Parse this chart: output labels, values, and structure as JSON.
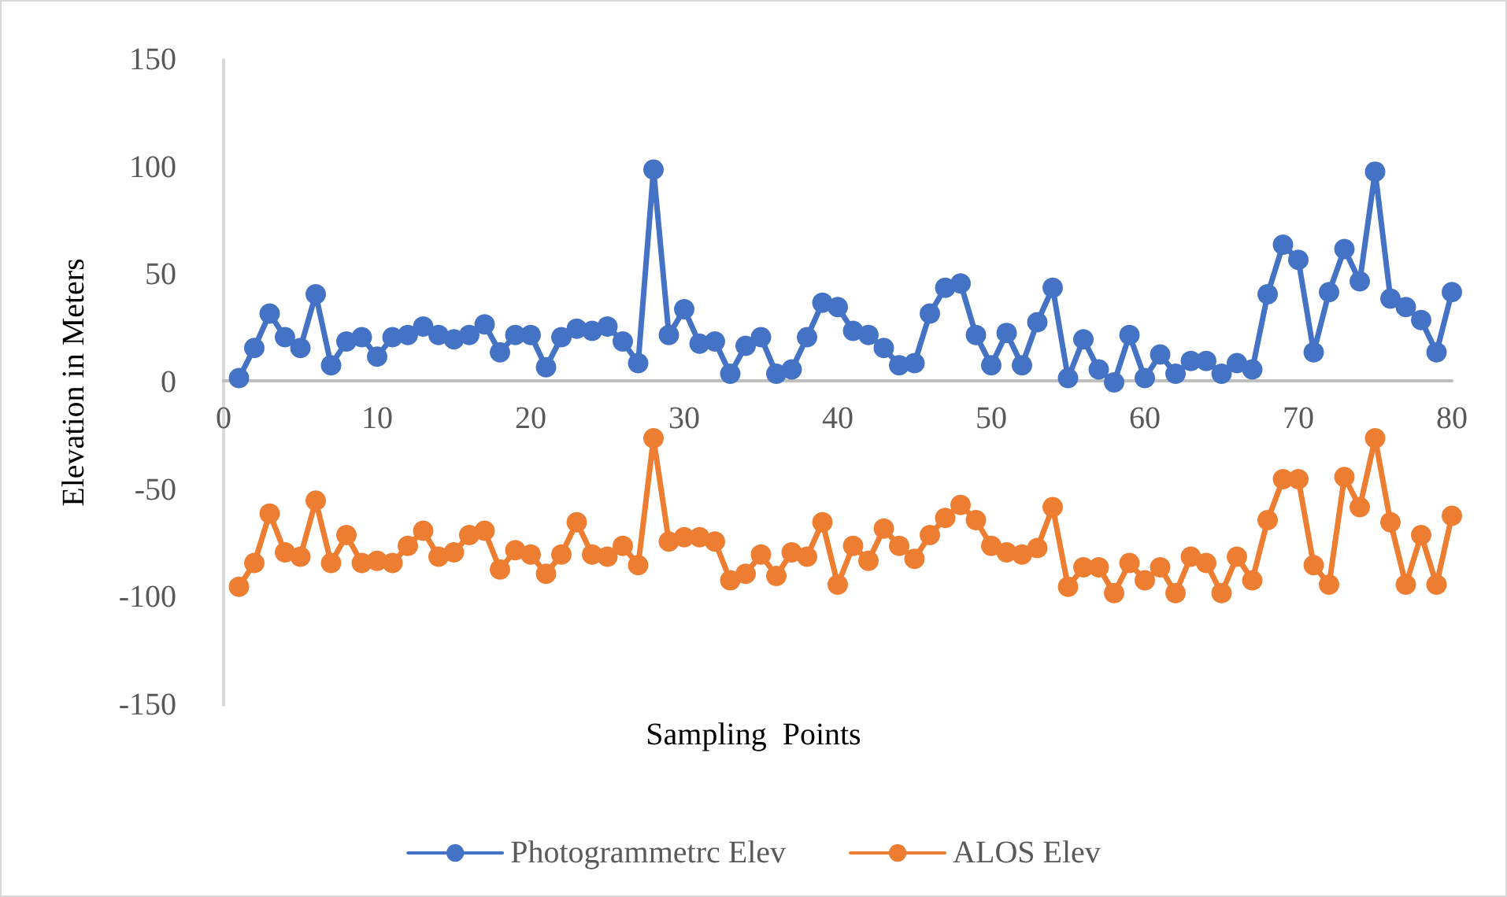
{
  "chart_data": {
    "type": "line",
    "xlabel": "Sampling  Points",
    "ylabel": "Elevation in Meters",
    "x": [
      1,
      2,
      3,
      4,
      5,
      6,
      7,
      8,
      9,
      10,
      11,
      12,
      13,
      14,
      15,
      16,
      17,
      18,
      19,
      20,
      21,
      22,
      23,
      24,
      25,
      26,
      27,
      28,
      29,
      30,
      31,
      32,
      33,
      34,
      35,
      36,
      37,
      38,
      39,
      40,
      41,
      42,
      43,
      44,
      45,
      46,
      47,
      48,
      49,
      50,
      51,
      52,
      53,
      54,
      55,
      56,
      57,
      58,
      59,
      60,
      61,
      62,
      63,
      64,
      65,
      66,
      67,
      68,
      69,
      70,
      71,
      72,
      73,
      74,
      75,
      76,
      77,
      78,
      79,
      80
    ],
    "series": [
      {
        "name": "Photogrammetrc Elev",
        "color": "#4472c4",
        "values": [
          2,
          16,
          32,
          21,
          16,
          41,
          8,
          19,
          21,
          12,
          21,
          22,
          26,
          22,
          20,
          22,
          27,
          14,
          22,
          22,
          7,
          21,
          25,
          24,
          26,
          19,
          9,
          99,
          22,
          34,
          18,
          19,
          4,
          17,
          21,
          4,
          6,
          21,
          37,
          35,
          24,
          22,
          16,
          8,
          9,
          32,
          44,
          46,
          22,
          8,
          23,
          8,
          28,
          44,
          2,
          20,
          6,
          0,
          22,
          2,
          13,
          4,
          10,
          10,
          4,
          9,
          6,
          41,
          64,
          57,
          14,
          42,
          62,
          47,
          98,
          39,
          35,
          29,
          14,
          42
        ]
      },
      {
        "name": "ALOS Elev",
        "color": "#ed7d31",
        "values": [
          -95,
          -84,
          -61,
          -79,
          -81,
          -55,
          -84,
          -71,
          -84,
          -83,
          -84,
          -76,
          -69,
          -81,
          -79,
          -71,
          -69,
          -87,
          -78,
          -80,
          -89,
          -80,
          -65,
          -80,
          -81,
          -76,
          -85,
          -26,
          -74,
          -72,
          -72,
          -74,
          -92,
          -89,
          -80,
          -90,
          -79,
          -81,
          -65,
          -94,
          -76,
          -83,
          -68,
          -76,
          -82,
          -71,
          -63,
          -57,
          -64,
          -76,
          -79,
          -80,
          -77,
          -58,
          -95,
          -86,
          -86,
          -98,
          -84,
          -92,
          -86,
          -98,
          -81,
          -84,
          -98,
          -81,
          -92,
          -64,
          -45,
          -45,
          -85,
          -94,
          -44,
          -58,
          -26,
          -65,
          -94,
          -71,
          -94,
          -62
        ]
      }
    ],
    "xlim": [
      0,
      80
    ],
    "xticks": [
      0,
      10,
      20,
      30,
      40,
      50,
      60,
      70,
      80
    ],
    "ylim": [
      -150,
      150
    ],
    "yticks": [
      -150,
      -100,
      -50,
      0,
      50,
      100,
      150
    ],
    "grid": false,
    "legend": "bottom",
    "marker": "circle",
    "line_style": "solid"
  }
}
